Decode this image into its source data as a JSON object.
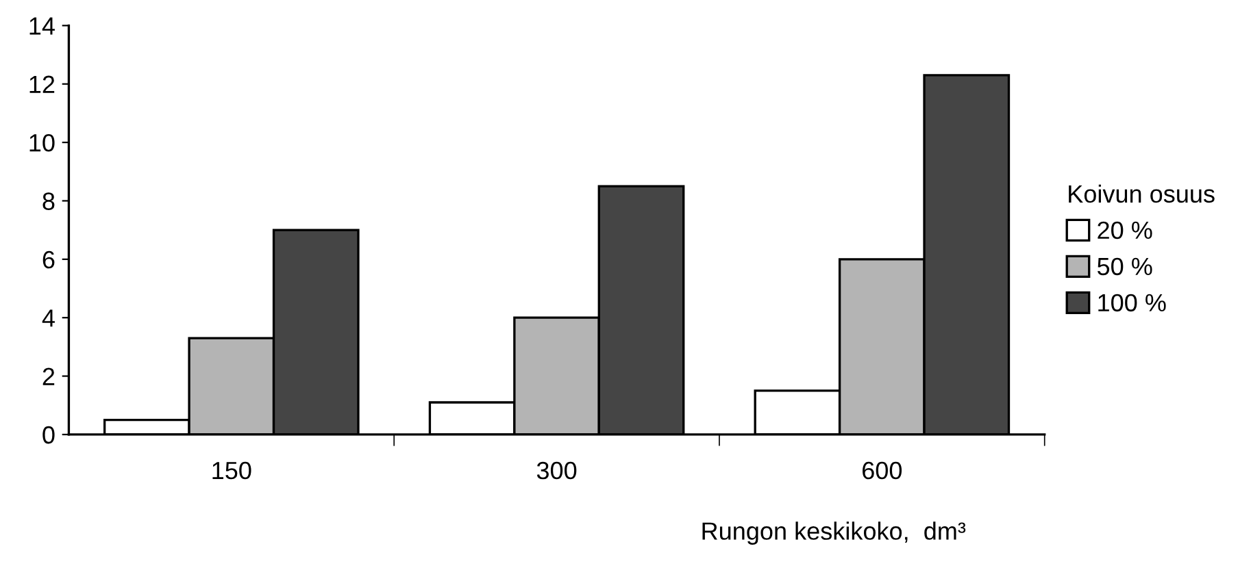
{
  "chart_data": {
    "type": "bar",
    "categories": [
      "150",
      "300",
      "600"
    ],
    "series": [
      {
        "name": "20 %",
        "color": "#ffffff",
        "values": [
          0.5,
          1.1,
          1.5
        ]
      },
      {
        "name": "50 %",
        "color": "#b4b4b4",
        "values": [
          3.3,
          4.0,
          6.0
        ]
      },
      {
        "name": "100 %",
        "color": "#454545",
        "values": [
          7.0,
          8.5,
          12.3
        ]
      }
    ],
    "ylim": [
      0,
      14
    ],
    "yticks": [
      0,
      2,
      4,
      6,
      8,
      10,
      12,
      14
    ],
    "xlabel": "Rungon keskikoko,  dm³",
    "legend_title": "Koivun osuus",
    "legend": "right",
    "grid": false
  }
}
